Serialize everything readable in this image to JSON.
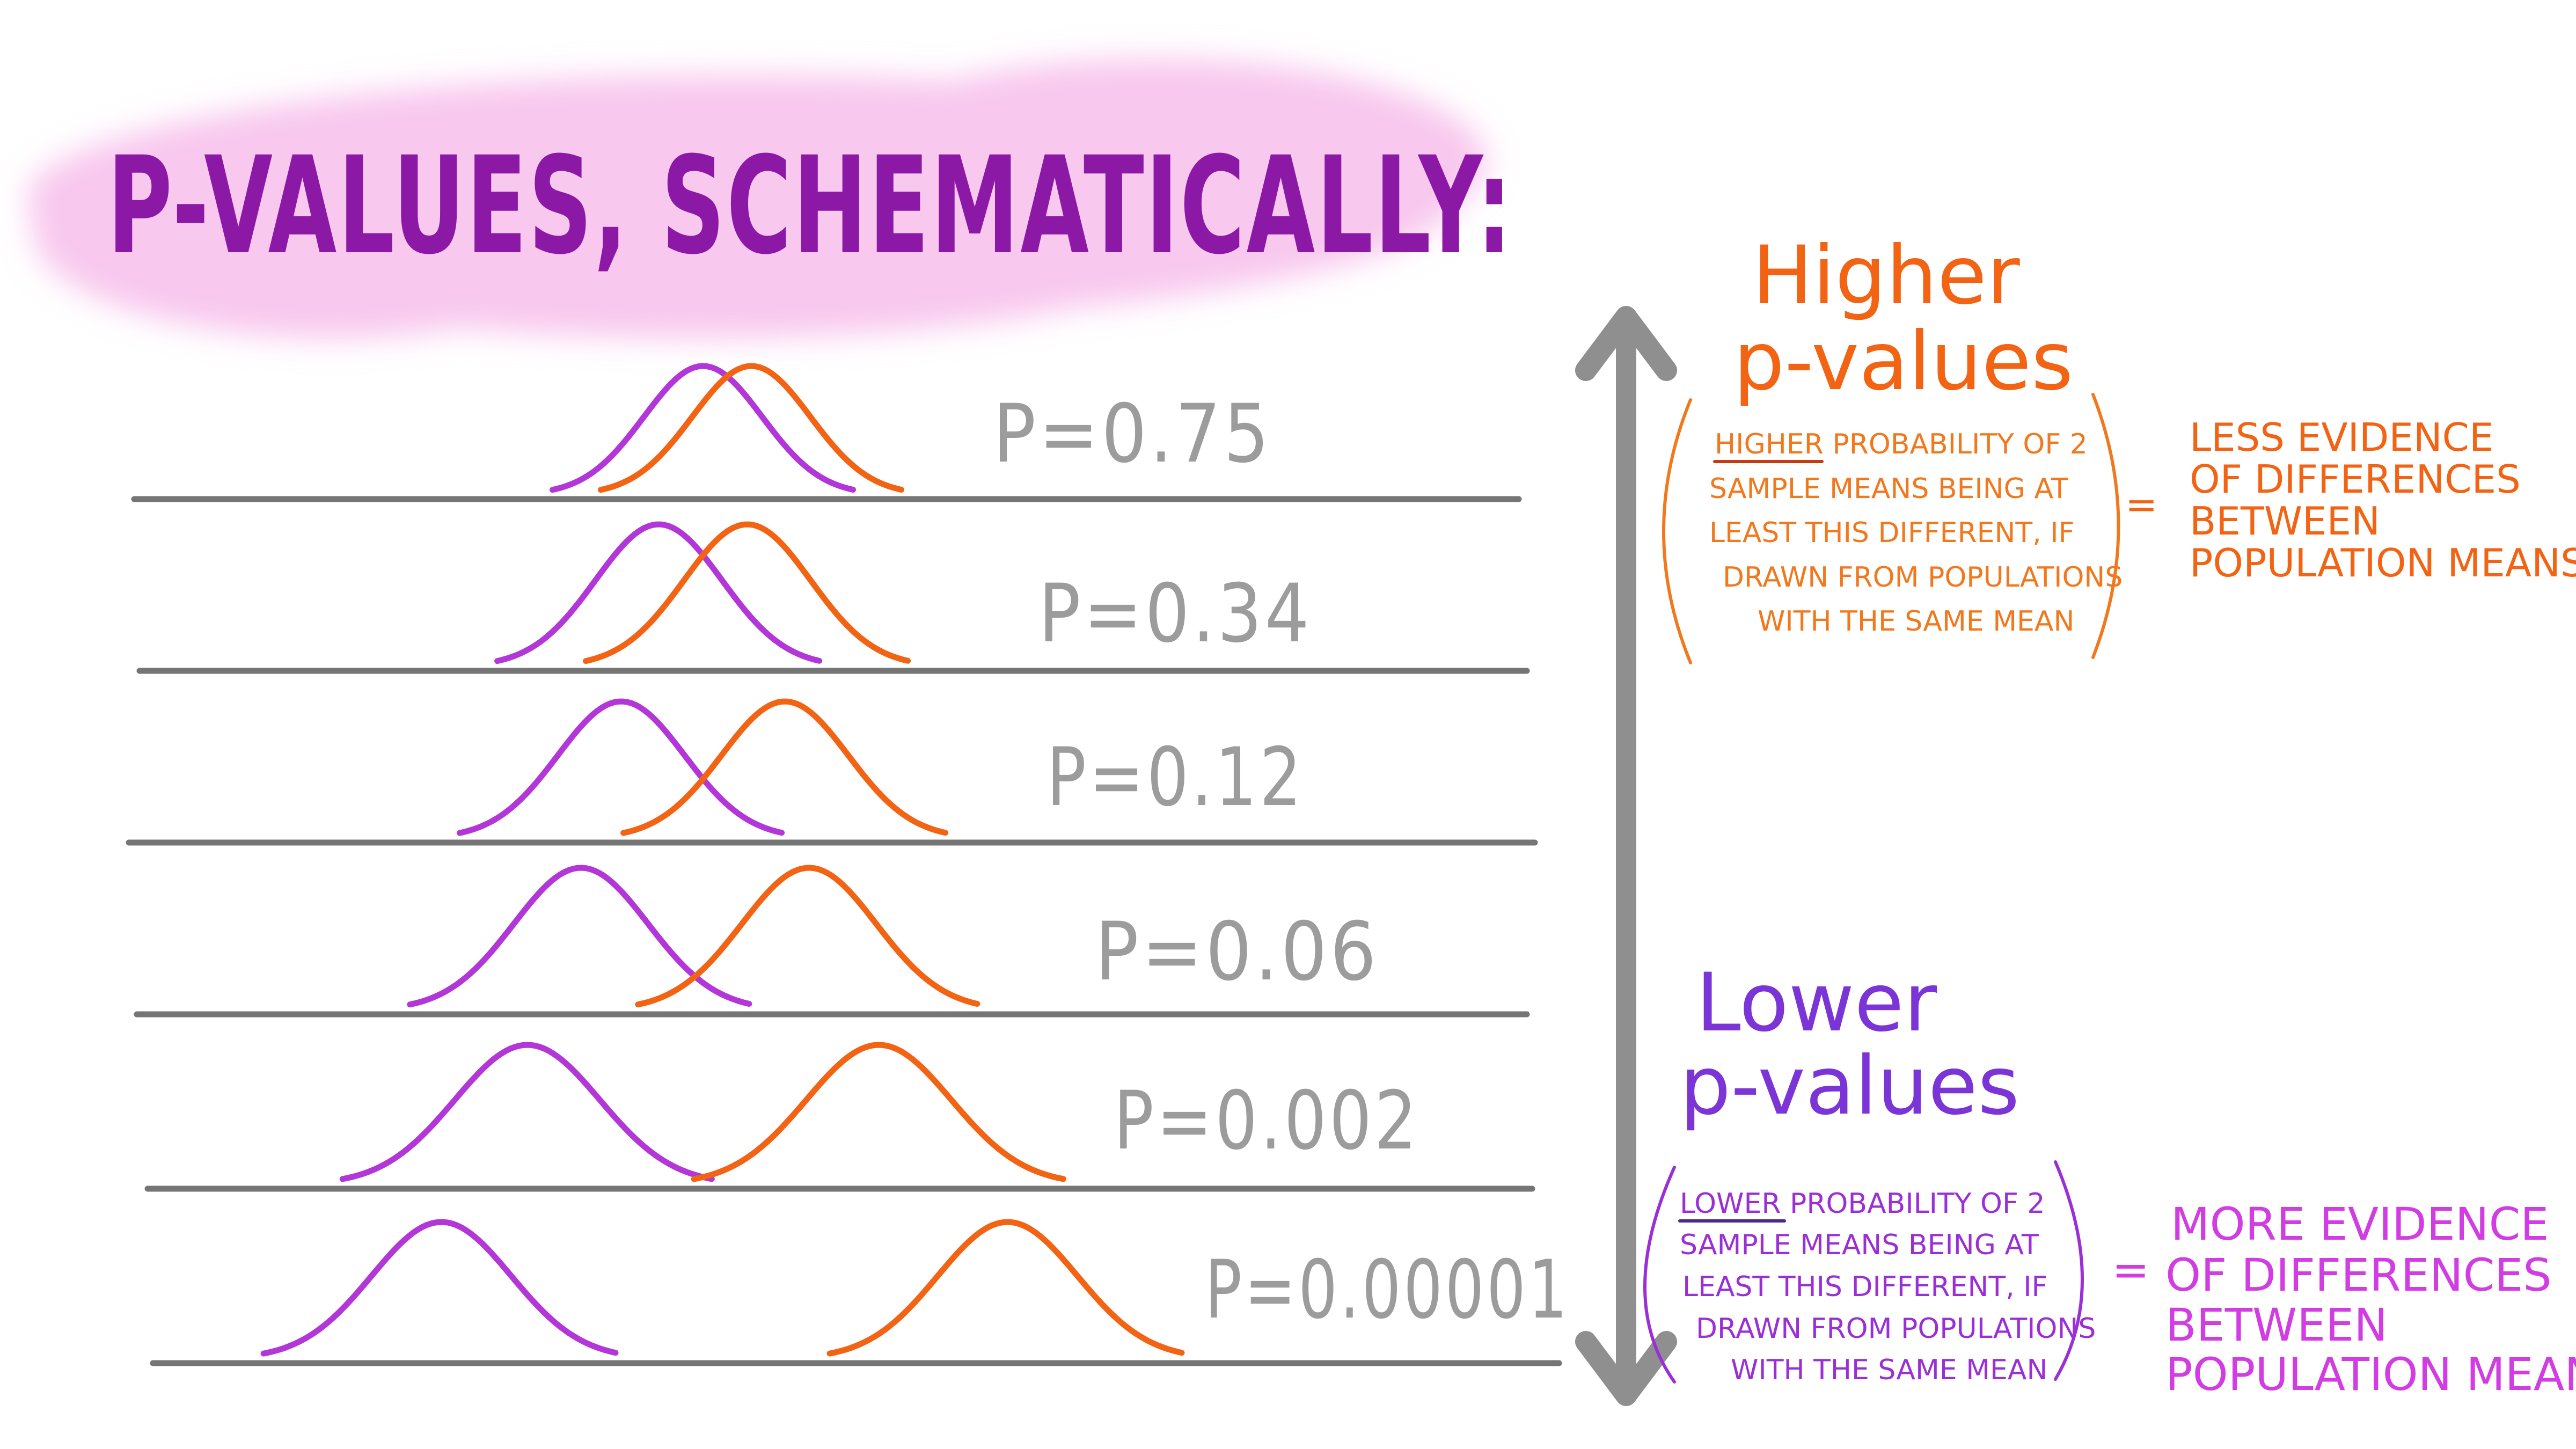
{
  "title": "P-VALUES, SCHEMATICALLY:",
  "colors": {
    "title": "#8c19a6",
    "title_brush": "#f8c8ee",
    "curve_purple": "#b236d8",
    "curve_orange": "#f26414",
    "baseline": "#757575",
    "arrow": "#8f8f8f",
    "pvalue_text": "#9c9c9c"
  },
  "rows": [
    {
      "label": "P=0.75",
      "separation": 0.18
    },
    {
      "label": "P=0.34",
      "separation": 0.33
    },
    {
      "label": "P=0.12",
      "separation": 0.61
    },
    {
      "label": "P=0.06",
      "separation": 0.85
    },
    {
      "label": "P=0.002",
      "separation": 1.31
    },
    {
      "label": "P=0.00001",
      "separation": 2.11
    }
  ],
  "higher": {
    "heading": [
      "Higher",
      "p-values"
    ],
    "emphasis": "HIGHER",
    "description": [
      " PROBABILITY OF 2",
      "SAMPLE MEANS BEING AT",
      "LEAST THIS DIFFERENT, IF",
      "DRAWN FROM POPULATIONS",
      "WITH THE SAME MEAN"
    ],
    "equals": "=",
    "result": [
      "LESS EVIDENCE",
      "OF DIFFERENCES",
      "BETWEEN",
      "POPULATION MEANS"
    ]
  },
  "lower": {
    "heading": [
      "Lower",
      "p-values"
    ],
    "emphasis": "LOWER",
    "description": [
      " PROBABILITY OF 2",
      "SAMPLE MEANS BEING AT",
      "LEAST THIS DIFFERENT, IF",
      "DRAWN FROM POPULATIONS",
      "WITH THE SAME MEAN"
    ],
    "equals": "=",
    "result": [
      "MORE EVIDENCE",
      "OF DIFFERENCES",
      "BETWEEN",
      "POPULATION MEANS"
    ]
  }
}
